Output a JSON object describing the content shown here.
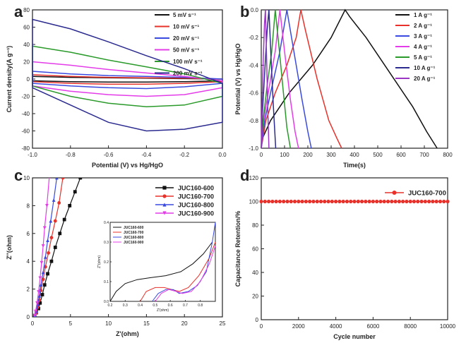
{
  "panels": {
    "a": "a",
    "b": "b",
    "c": "c",
    "d": "d"
  },
  "chart_data": [
    {
      "id": "a",
      "type": "line",
      "xlabel": "Potential (V) vs Hg/HgO",
      "ylabel": "Current density(A g⁻¹)",
      "xlim": [
        -1.0,
        0.0
      ],
      "ylim": [
        -80,
        80
      ],
      "xticks": [
        -1.0,
        -0.8,
        -0.6,
        -0.4,
        -0.2,
        0.0
      ],
      "xtick_labels": [
        "-1.0",
        "-0.8",
        "-0.6",
        "-0.4",
        "-0.2",
        "0.0"
      ],
      "yticks": [
        -80,
        -60,
        -40,
        -20,
        0,
        20,
        40,
        60,
        80
      ],
      "ytick_labels": [
        "-80",
        "-60",
        "-40",
        "-20",
        "0",
        "20",
        "40",
        "60",
        "80"
      ],
      "series": [
        {
          "name": "5 mV s⁻¹",
          "color": "#111111",
          "top": [
            3,
            2,
            1.5,
            1,
            0.5,
            0
          ],
          "bottom": [
            -2,
            -3,
            -3.5,
            -3.5,
            -3,
            -2
          ]
        },
        {
          "name": "10 mV s⁻¹",
          "color": "#e8312a",
          "top": [
            5,
            3,
            2,
            1.5,
            1,
            0
          ],
          "bottom": [
            -3,
            -5,
            -6,
            -6,
            -5,
            -3
          ]
        },
        {
          "name": "20 mV s⁻¹",
          "color": "#3a4ae0",
          "top": [
            9,
            6,
            4,
            3,
            2,
            0
          ],
          "bottom": [
            -5,
            -8,
            -10,
            -11,
            -9,
            -5
          ]
        },
        {
          "name": "50 mV s⁻¹",
          "color": "#e33ce8",
          "top": [
            20,
            16,
            11,
            7,
            3,
            -2
          ],
          "bottom": [
            -8,
            -14,
            -18,
            -20,
            -18,
            -10
          ]
        },
        {
          "name": "100 mV s⁻¹",
          "color": "#2a9a2a",
          "top": [
            38,
            31,
            22,
            14,
            6,
            -5
          ],
          "bottom": [
            -8,
            -20,
            -28,
            -32,
            -30,
            -20
          ]
        },
        {
          "name": "200 mV s⁻¹",
          "color": "#2b2a8f",
          "top": [
            69,
            58,
            43,
            27,
            12,
            -5
          ],
          "bottom": [
            -10,
            -30,
            -50,
            -60,
            -58,
            -50
          ]
        }
      ]
    },
    {
      "id": "b",
      "type": "line",
      "xlabel": "Time(s)",
      "ylabel": "Potential (V) vs Hg/HgO",
      "xlim": [
        0,
        800
      ],
      "ylim": [
        -1.0,
        0.0
      ],
      "xticks": [
        0,
        100,
        200,
        300,
        400,
        500,
        600,
        700,
        800
      ],
      "xtick_labels": [
        "0",
        "100",
        "200",
        "300",
        "400",
        "500",
        "600",
        "700",
        "800"
      ],
      "yticks": [
        -1.0,
        -0.8,
        -0.6,
        -0.4,
        -0.2,
        0.0
      ],
      "ytick_labels": [
        "-1.0",
        "-0.8",
        "-0.6",
        "-0.4",
        "-0.2",
        "0.0"
      ],
      "series": [
        {
          "name": "1 A g⁻¹",
          "color": "#111111",
          "x": [
            0,
            5,
            40,
            120,
            220,
            300,
            360,
            380,
            450,
            550,
            650,
            710,
            755
          ],
          "y": [
            -1.0,
            -0.93,
            -0.8,
            -0.6,
            -0.4,
            -0.2,
            0.0,
            -0.05,
            -0.2,
            -0.45,
            -0.7,
            -0.88,
            -1.0
          ]
        },
        {
          "name": "2 A g⁻¹",
          "color": "#e8312a",
          "x": [
            0,
            20,
            60,
            110,
            150,
            170,
            190,
            240,
            290,
            325,
            345
          ],
          "y": [
            -1.0,
            -0.8,
            -0.6,
            -0.4,
            -0.2,
            0.0,
            -0.15,
            -0.5,
            -0.8,
            -0.93,
            -1.0
          ]
        },
        {
          "name": "3 A g⁻¹",
          "color": "#3a4ae0",
          "x": [
            0,
            15,
            40,
            80,
            100,
            110,
            140,
            175,
            200,
            215
          ],
          "y": [
            -1.0,
            -0.8,
            -0.6,
            -0.3,
            -0.1,
            0.0,
            -0.3,
            -0.65,
            -0.88,
            -1.0
          ]
        },
        {
          "name": "4 A g⁻¹",
          "color": "#e33ce8",
          "x": [
            0,
            10,
            30,
            60,
            80,
            100,
            125,
            145,
            160
          ],
          "y": [
            -1.0,
            -0.8,
            -0.6,
            -0.3,
            0.0,
            -0.3,
            -0.65,
            -0.88,
            -1.0
          ]
        },
        {
          "name": "5 A g⁻¹",
          "color": "#2a9a2a",
          "x": [
            0,
            8,
            25,
            45,
            60,
            75,
            95,
            110,
            125
          ],
          "y": [
            -1.0,
            -0.8,
            -0.55,
            -0.3,
            0.0,
            -0.25,
            -0.6,
            -0.85,
            -1.0
          ]
        },
        {
          "name": "10 A g⁻¹",
          "color": "#2b2a8f",
          "x": [
            0,
            5,
            15,
            25,
            33,
            42,
            52,
            62
          ],
          "y": [
            -1.0,
            -0.75,
            -0.45,
            -0.15,
            0.0,
            -0.35,
            -0.7,
            -1.0
          ]
        },
        {
          "name": "20 A g⁻¹",
          "color": "#9a35c4",
          "x": [
            0,
            3,
            8,
            14,
            18,
            23,
            28,
            33
          ],
          "y": [
            -1.0,
            -0.7,
            -0.4,
            -0.1,
            0.0,
            -0.35,
            -0.7,
            -1.0
          ]
        }
      ]
    },
    {
      "id": "c",
      "type": "scatter",
      "xlabel": "Z'(ohm)",
      "ylabel": "Z''(ohm)",
      "xlim": [
        0,
        25
      ],
      "ylim": [
        0,
        10
      ],
      "xticks": [
        0,
        5,
        10,
        15,
        20,
        25
      ],
      "xtick_labels": [
        "0",
        "5",
        "10",
        "15",
        "20",
        "25"
      ],
      "yticks": [
        0,
        2,
        4,
        6,
        8,
        10
      ],
      "ytick_labels": [
        "0",
        "2",
        "4",
        "6",
        "8",
        "10"
      ],
      "series": [
        {
          "name": "JUC160-600",
          "color": "#111111",
          "marker": "square",
          "x": [
            0.3,
            0.5,
            0.8,
            1.0,
            1.3,
            1.6,
            2.0,
            2.5,
            3.0,
            3.6,
            4.2,
            4.9,
            5.6,
            6.3
          ],
          "y": [
            0.1,
            0.3,
            0.6,
            1.0,
            1.6,
            2.3,
            3.1,
            4.0,
            5.0,
            6.0,
            7.0,
            8.0,
            9.0,
            10.0
          ]
        },
        {
          "name": "JUC160-700",
          "color": "#e8312a",
          "marker": "circle",
          "x": [
            0.3,
            0.5,
            0.7,
            0.9,
            1.1,
            1.4,
            1.7,
            2.1,
            2.5,
            3.0,
            3.5,
            4.0
          ],
          "y": [
            0.1,
            0.3,
            0.7,
            1.2,
            1.9,
            2.7,
            3.6,
            4.6,
            5.7,
            6.9,
            8.2,
            10.0
          ]
        },
        {
          "name": "JUC160-800",
          "color": "#3a4ae0",
          "marker": "triangle",
          "x": [
            0.3,
            0.5,
            0.7,
            0.9,
            1.1,
            1.4,
            1.7,
            2.0,
            2.4,
            2.8,
            3.2
          ],
          "y": [
            0.1,
            0.4,
            0.9,
            1.5,
            2.3,
            3.2,
            4.3,
            5.5,
            6.9,
            8.4,
            10.0
          ]
        },
        {
          "name": "JUC160-900",
          "color": "#e33ce8",
          "marker": "triangle-down",
          "x": [
            0.3,
            0.4,
            0.6,
            0.8,
            1.0,
            1.2,
            1.4,
            1.6,
            1.9,
            2.2
          ],
          "y": [
            0.1,
            0.4,
            1.0,
            1.8,
            2.8,
            3.9,
            5.1,
            6.4,
            8.0,
            10.0
          ]
        }
      ],
      "inset": {
        "xlim": [
          0.2,
          0.9
        ],
        "ylim": [
          0.0,
          0.4
        ],
        "xticks": [
          0.2,
          0.3,
          0.4,
          0.5,
          0.6,
          0.7,
          0.8
        ],
        "xtick_labels": [
          "0.2",
          "0.3",
          "0.4",
          "0.5",
          "0.6",
          "0.7",
          "0.8"
        ],
        "yticks": [
          0.0,
          0.1,
          0.2,
          0.3,
          0.4
        ],
        "ytick_labels": [
          "0.0",
          "0.1",
          "0.2",
          "0.3",
          "0.4"
        ],
        "xlabel": "Z'(ohm)",
        "ylabel": "Z''(ohm)",
        "series": [
          {
            "name": "JUC160-600",
            "color": "#111111",
            "x": [
              0.2,
              0.24,
              0.3,
              0.38,
              0.47,
              0.57,
              0.67,
              0.75,
              0.82,
              0.88
            ],
            "y": [
              0.0,
              0.05,
              0.09,
              0.11,
              0.12,
              0.13,
              0.15,
              0.19,
              0.24,
              0.3
            ]
          },
          {
            "name": "JUC160-700",
            "color": "#e8312a",
            "x": [
              0.4,
              0.44,
              0.5,
              0.56,
              0.61,
              0.66,
              0.72,
              0.79,
              0.86,
              0.9
            ],
            "y": [
              0.0,
              0.05,
              0.07,
              0.07,
              0.06,
              0.05,
              0.07,
              0.13,
              0.22,
              0.3
            ]
          },
          {
            "name": "JUC160-800",
            "color": "#3a4ae0",
            "x": [
              0.48,
              0.52,
              0.57,
              0.62,
              0.66,
              0.72,
              0.78,
              0.84,
              0.88,
              0.9
            ],
            "y": [
              0.0,
              0.04,
              0.06,
              0.06,
              0.04,
              0.05,
              0.08,
              0.15,
              0.3,
              0.4
            ]
          },
          {
            "name": "JUC160-900",
            "color": "#e33ce8",
            "x": [
              0.5,
              0.54,
              0.59,
              0.64,
              0.68,
              0.74,
              0.8,
              0.86,
              0.9
            ],
            "y": [
              0.0,
              0.04,
              0.06,
              0.05,
              0.04,
              0.05,
              0.1,
              0.19,
              0.28
            ]
          }
        ]
      }
    },
    {
      "id": "d",
      "type": "scatter",
      "xlabel": "Cycle number",
      "ylabel": "Capacitance Retention/%",
      "xlim": [
        0,
        10000
      ],
      "ylim": [
        0,
        120
      ],
      "xticks": [
        0,
        2000,
        4000,
        6000,
        8000,
        10000
      ],
      "xtick_labels": [
        "0",
        "2000",
        "4000",
        "6000",
        "8000",
        "10000"
      ],
      "yticks": [
        0,
        20,
        40,
        60,
        80,
        100,
        120
      ],
      "ytick_labels": [
        "0",
        "20",
        "40",
        "60",
        "80",
        "100",
        "120"
      ],
      "series": [
        {
          "name": "JUC160-700",
          "color": "#e8312a",
          "x_start": 0,
          "x_end": 10000,
          "x_step": 200,
          "value": 100
        }
      ]
    }
  ]
}
